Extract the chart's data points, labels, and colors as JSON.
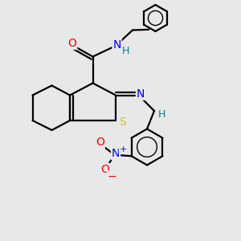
{
  "bg_color": "#e8e8e8",
  "bond_lw": 1.6,
  "figsize": [
    3.0,
    3.0
  ],
  "dpi": 100,
  "xlim": [
    0,
    10
  ],
  "ylim": [
    0,
    10
  ],
  "colors": {
    "O": "#ff0000",
    "N": "#0000ff",
    "S": "#cccc00",
    "H_teal": "#008080",
    "bond": "#000000",
    "no2_plus": "#0000ff",
    "no2_minus": "#ff0000"
  }
}
